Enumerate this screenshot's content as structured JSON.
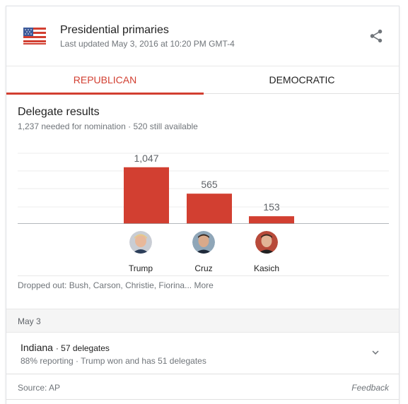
{
  "header": {
    "title": "Presidential primaries",
    "subtitle": "Last updated May 3, 2016 at 10:20 PM GMT-4",
    "flag_icon": "us-flag-icon",
    "share_icon": "share-icon"
  },
  "tabs": [
    {
      "label": "REPUBLICAN",
      "active": true
    },
    {
      "label": "DEMOCRATIC",
      "active": false
    }
  ],
  "results": {
    "title": "Delegate results",
    "subtitle": "1,237 needed for nomination · 520 still available"
  },
  "colors": {
    "accent": "#d23f31",
    "bar": "#d23f31",
    "muted_text": "#70757a"
  },
  "chart_data": {
    "type": "bar",
    "categories": [
      "Trump",
      "Cruz",
      "Kasich"
    ],
    "values": [
      1047,
      565,
      153
    ],
    "value_labels": [
      "1,047",
      "565",
      "153"
    ],
    "title": "",
    "xlabel": "",
    "ylabel": "",
    "ylim": [
      0,
      1237
    ],
    "grid": true
  },
  "candidates": [
    {
      "name": "Trump",
      "avatar_icon": "trump-avatar-icon"
    },
    {
      "name": "Cruz",
      "avatar_icon": "cruz-avatar-icon"
    },
    {
      "name": "Kasich",
      "avatar_icon": "kasich-avatar-icon"
    }
  ],
  "dropped": {
    "text": "Dropped out: Bush, Carson, Christie, Fiorina...",
    "more_label": "More"
  },
  "date_section": {
    "label": "May 3"
  },
  "state": {
    "name": "Indiana",
    "delegates": "· 57 delegates",
    "detail": "88% reporting · Trump won and has 51 delegates",
    "chevron_icon": "chevron-down-icon"
  },
  "footer": {
    "source": "Source: AP",
    "feedback": "Feedback"
  }
}
